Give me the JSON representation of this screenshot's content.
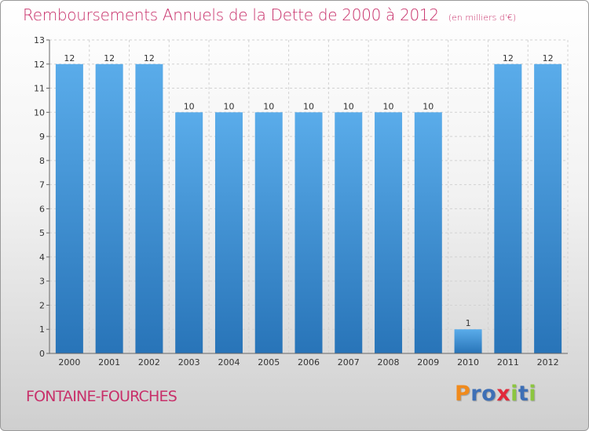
{
  "title": "Remboursements Annuels de la Dette de 2000 à 2012",
  "subtitle": "(en milliers d'€)",
  "location": "FONTAINE-FOURCHES",
  "logo": {
    "letters": [
      "P",
      "r",
      "o",
      "x",
      "i",
      "t",
      "i"
    ],
    "colors": [
      "#f08a1c",
      "#3d6fb6",
      "#3d6fb6",
      "#e2293a",
      "#8cc63f",
      "#3d6fb6",
      "#8cc63f"
    ]
  },
  "colors": {
    "bar": "#4a9ee0",
    "bar_dark": "#2a78bd",
    "title": "#c8306a",
    "grid": "#d0d0d0",
    "axis": "#666666"
  },
  "chart_data": {
    "type": "bar",
    "categories": [
      "2000",
      "2001",
      "2002",
      "2003",
      "2004",
      "2005",
      "2006",
      "2007",
      "2008",
      "2009",
      "2010",
      "2011",
      "2012"
    ],
    "values": [
      12,
      12,
      12,
      10,
      10,
      10,
      10,
      10,
      10,
      10,
      1,
      12,
      12
    ],
    "data_labels": [
      "12",
      "12",
      "12",
      "10",
      "10",
      "10",
      "10",
      "10",
      "10",
      "10",
      "1",
      "12",
      "12"
    ],
    "title": "Remboursements Annuels de la Dette de 2000 à 2012",
    "xlabel": "",
    "ylabel": "",
    "ylim": [
      0,
      13
    ],
    "yticks": [
      "0",
      "1",
      "2",
      "3",
      "4",
      "5",
      "6",
      "7",
      "8",
      "9",
      "10",
      "11",
      "12",
      "13"
    ],
    "grid": true
  }
}
